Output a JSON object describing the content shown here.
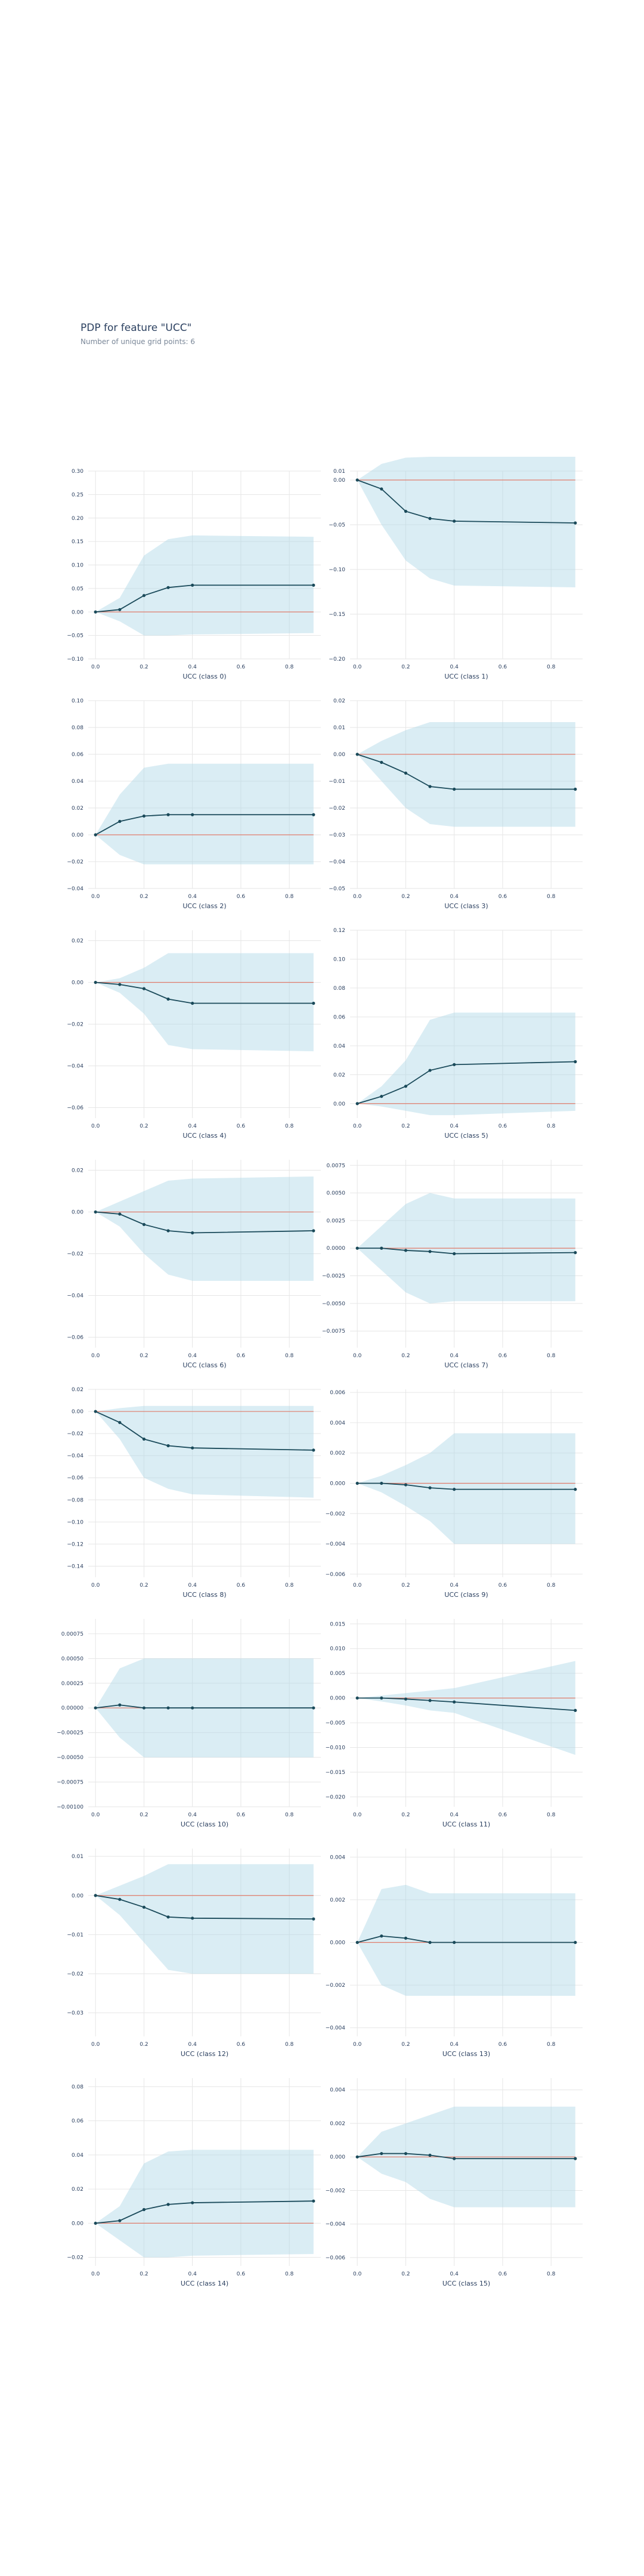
{
  "title": "PDP for feature \"UCC\"",
  "subtitle": "Number of unique grid points: 6",
  "colors": {
    "band": "#add8e6",
    "line": "#1a4a5a",
    "zero": "#e07b6a",
    "grid": "#e6e6e6"
  },
  "chart_data": [
    {
      "type": "line",
      "xlabel": "UCC (class 0)",
      "x": [
        0,
        0.1,
        0.2,
        0.3,
        0.4,
        0.9
      ],
      "y": [
        0,
        0.005,
        0.035,
        0.052,
        0.057,
        0.057
      ],
      "upper": [
        0,
        0.03,
        0.12,
        0.155,
        0.163,
        0.16
      ],
      "lower": [
        0,
        -0.02,
        -0.05,
        -0.05,
        -0.048,
        -0.045
      ],
      "xlim": [
        -0.03,
        0.93
      ],
      "xticks": [
        "0.0",
        "0.2",
        "0.4",
        "0.6",
        "0.8"
      ],
      "ylim": [
        -0.1,
        0.3
      ],
      "yticks": [
        "0.30",
        "0.25",
        "0.20",
        "0.15",
        "0.10",
        "0.05",
        "0.00",
        "−0.05",
        "−0.10"
      ]
    },
    {
      "type": "line",
      "xlabel": "UCC (class 1)",
      "x": [
        0,
        0.1,
        0.2,
        0.3,
        0.4,
        0.9
      ],
      "y": [
        0,
        -0.01,
        -0.035,
        -0.043,
        -0.046,
        -0.048
      ],
      "upper": [
        0,
        0.018,
        0.025,
        0.026,
        0.026,
        0.026
      ],
      "lower": [
        0,
        -0.05,
        -0.09,
        -0.11,
        -0.118,
        -0.12
      ],
      "xlim": [
        -0.03,
        0.93
      ],
      "xticks": [
        "0.0",
        "0.2",
        "0.4",
        "0.6",
        "0.8"
      ],
      "ylim": [
        -0.2,
        0.01
      ],
      "yticks": [
        "0.01",
        "0.00",
        "−0.05",
        "−0.10",
        "−0.15",
        "−0.20"
      ]
    },
    {
      "type": "line",
      "xlabel": "UCC (class 2)",
      "x": [
        0,
        0.1,
        0.2,
        0.3,
        0.4,
        0.9
      ],
      "y": [
        0,
        0.01,
        0.014,
        0.015,
        0.015,
        0.015
      ],
      "upper": [
        0,
        0.03,
        0.05,
        0.053,
        0.053,
        0.053
      ],
      "lower": [
        0,
        -0.015,
        -0.022,
        -0.022,
        -0.022,
        -0.022
      ],
      "xlim": [
        -0.03,
        0.93
      ],
      "xticks": [
        "0.0",
        "0.2",
        "0.4",
        "0.6",
        "0.8"
      ],
      "ylim": [
        -0.04,
        0.1
      ],
      "yticks": [
        "0.10",
        "0.08",
        "0.06",
        "0.04",
        "0.02",
        "0.00",
        "−0.02",
        "−0.04"
      ]
    },
    {
      "type": "line",
      "xlabel": "UCC (class 3)",
      "x": [
        0,
        0.1,
        0.2,
        0.3,
        0.4,
        0.9
      ],
      "y": [
        0,
        -0.003,
        -0.007,
        -0.012,
        -0.013,
        -0.013
      ],
      "upper": [
        0,
        0.005,
        0.009,
        0.012,
        0.012,
        0.012
      ],
      "lower": [
        0,
        -0.01,
        -0.02,
        -0.026,
        -0.027,
        -0.027
      ],
      "xlim": [
        -0.03,
        0.93
      ],
      "xticks": [
        "0.0",
        "0.2",
        "0.4",
        "0.6",
        "0.8"
      ],
      "ylim": [
        -0.05,
        0.02
      ],
      "yticks": [
        "0.02",
        "0.01",
        "0.00",
        "−0.01",
        "−0.02",
        "−0.03",
        "−0.04",
        "−0.05"
      ]
    },
    {
      "type": "line",
      "xlabel": "UCC (class 4)",
      "x": [
        0,
        0.1,
        0.2,
        0.3,
        0.4,
        0.9
      ],
      "y": [
        0,
        -0.001,
        -0.003,
        -0.008,
        -0.01,
        -0.01
      ],
      "upper": [
        0,
        0.002,
        0.007,
        0.014,
        0.014,
        0.014
      ],
      "lower": [
        0,
        -0.005,
        -0.015,
        -0.03,
        -0.032,
        -0.033
      ],
      "xlim": [
        -0.03,
        0.93
      ],
      "xticks": [
        "0.0",
        "0.2",
        "0.4",
        "0.6",
        "0.8"
      ],
      "ylim": [
        -0.065,
        0.025
      ],
      "yticks": [
        "0.02",
        "0.00",
        "−0.02",
        "−0.04",
        "−0.06"
      ]
    },
    {
      "type": "line",
      "xlabel": "UCC (class 5)",
      "x": [
        0,
        0.1,
        0.2,
        0.3,
        0.4,
        0.9
      ],
      "y": [
        0,
        0.005,
        0.012,
        0.023,
        0.027,
        0.029
      ],
      "upper": [
        0,
        0.012,
        0.03,
        0.058,
        0.063,
        0.063
      ],
      "lower": [
        0,
        -0.002,
        -0.005,
        -0.008,
        -0.008,
        -0.005
      ],
      "xlim": [
        -0.03,
        0.93
      ],
      "xticks": [
        "0.0",
        "0.2",
        "0.4",
        "0.6",
        "0.8"
      ],
      "ylim": [
        -0.01,
        0.12
      ],
      "yticks": [
        "0.12",
        "0.10",
        "0.08",
        "0.06",
        "0.04",
        "0.02",
        "0.00"
      ]
    },
    {
      "type": "line",
      "xlabel": "UCC (class 6)",
      "x": [
        0,
        0.1,
        0.2,
        0.3,
        0.4,
        0.9
      ],
      "y": [
        0,
        -0.001,
        -0.006,
        -0.009,
        -0.01,
        -0.009
      ],
      "upper": [
        0,
        0.005,
        0.01,
        0.015,
        0.016,
        0.017
      ],
      "lower": [
        0,
        -0.007,
        -0.02,
        -0.03,
        -0.033,
        -0.033
      ],
      "xlim": [
        -0.03,
        0.93
      ],
      "xticks": [
        "0.0",
        "0.2",
        "0.4",
        "0.6",
        "0.8"
      ],
      "ylim": [
        -0.065,
        0.025
      ],
      "yticks": [
        "0.02",
        "0.00",
        "−0.02",
        "−0.04",
        "−0.06"
      ]
    },
    {
      "type": "line",
      "xlabel": "UCC (class 7)",
      "x": [
        0,
        0.1,
        0.2,
        0.3,
        0.4,
        0.9
      ],
      "y": [
        0,
        0,
        -0.0002,
        -0.0003,
        -0.0005,
        -0.0004
      ],
      "upper": [
        0,
        0.002,
        0.004,
        0.005,
        0.0045,
        0.0045
      ],
      "lower": [
        0,
        -0.002,
        -0.004,
        -0.005,
        -0.0048,
        -0.0048
      ],
      "xlim": [
        -0.03,
        0.93
      ],
      "xticks": [
        "0.0",
        "0.2",
        "0.4",
        "0.6",
        "0.8"
      ],
      "ylim": [
        -0.009,
        0.008
      ],
      "yticks": [
        "0.0075",
        "0.0050",
        "0.0025",
        "0.0000",
        "−0.0025",
        "−0.0050",
        "−0.0075"
      ]
    },
    {
      "type": "line",
      "xlabel": "UCC (class 8)",
      "x": [
        0,
        0.1,
        0.2,
        0.3,
        0.4,
        0.9
      ],
      "y": [
        0,
        -0.01,
        -0.025,
        -0.031,
        -0.033,
        -0.035
      ],
      "upper": [
        0,
        0.003,
        0.005,
        0.005,
        0.005,
        0.005
      ],
      "lower": [
        0,
        -0.025,
        -0.06,
        -0.07,
        -0.075,
        -0.078
      ],
      "xlim": [
        -0.03,
        0.93
      ],
      "xticks": [
        "0.0",
        "0.2",
        "0.4",
        "0.6",
        "0.8"
      ],
      "ylim": [
        -0.15,
        0.02
      ],
      "yticks": [
        "0.02",
        "0.00",
        "−0.02",
        "−0.04",
        "−0.06",
        "−0.08",
        "−0.10",
        "−0.12",
        "−0.14"
      ]
    },
    {
      "type": "line",
      "xlabel": "UCC (class 9)",
      "x": [
        0,
        0.1,
        0.2,
        0.3,
        0.4,
        0.9
      ],
      "y": [
        0,
        0,
        -0.0001,
        -0.0003,
        -0.0004,
        -0.0004
      ],
      "upper": [
        0,
        0.0005,
        0.0012,
        0.002,
        0.0033,
        0.0033
      ],
      "lower": [
        0,
        -0.0006,
        -0.0015,
        -0.0025,
        -0.004,
        -0.004
      ],
      "xlim": [
        -0.03,
        0.93
      ],
      "xticks": [
        "0.0",
        "0.2",
        "0.4",
        "0.6",
        "0.8"
      ],
      "ylim": [
        -0.0062,
        0.0062
      ],
      "yticks": [
        "0.006",
        "0.004",
        "0.002",
        "0.000",
        "−0.002",
        "−0.004",
        "−0.006"
      ]
    },
    {
      "type": "line",
      "xlabel": "UCC (class 10)",
      "x": [
        0,
        0.1,
        0.2,
        0.3,
        0.4,
        0.9
      ],
      "y": [
        0,
        3e-05,
        0,
        0,
        0,
        0
      ],
      "upper": [
        0,
        0.0004,
        0.0005,
        0.0005,
        0.0005,
        0.0005
      ],
      "lower": [
        0,
        -0.0003,
        -0.0005,
        -0.0005,
        -0.0005,
        -0.0005
      ],
      "xlim": [
        -0.03,
        0.93
      ],
      "xticks": [
        "0.0",
        "0.2",
        "0.4",
        "0.6",
        "0.8"
      ],
      "ylim": [
        -0.001,
        0.0009
      ],
      "yticks": [
        "0.00075",
        "0.00050",
        "0.00025",
        "0.00000",
        "−0.00025",
        "−0.00050",
        "−0.00075",
        "−0.00100"
      ]
    },
    {
      "type": "line",
      "xlabel": "UCC (class 11)",
      "x": [
        0,
        0.1,
        0.2,
        0.3,
        0.4,
        0.9
      ],
      "y": [
        0,
        0,
        -0.0002,
        -0.0005,
        -0.0008,
        -0.0025
      ],
      "upper": [
        0,
        0.0005,
        0.001,
        0.0015,
        0.002,
        0.0075
      ],
      "lower": [
        0,
        -0.0007,
        -0.0015,
        -0.0025,
        -0.003,
        -0.0115
      ],
      "xlim": [
        -0.03,
        0.93
      ],
      "xticks": [
        "0.0",
        "0.2",
        "0.4",
        "0.6",
        "0.8"
      ],
      "ylim": [
        -0.022,
        0.016
      ],
      "yticks": [
        "0.015",
        "0.010",
        "0.005",
        "0.000",
        "−0.005",
        "−0.010",
        "−0.015",
        "−0.020"
      ]
    },
    {
      "type": "line",
      "xlabel": "UCC (class 12)",
      "x": [
        0,
        0.1,
        0.2,
        0.3,
        0.4,
        0.9
      ],
      "y": [
        0,
        -0.001,
        -0.003,
        -0.0055,
        -0.0058,
        -0.006
      ],
      "upper": [
        0,
        0.0025,
        0.005,
        0.008,
        0.008,
        0.008
      ],
      "lower": [
        0,
        -0.005,
        -0.012,
        -0.019,
        -0.02,
        -0.02
      ],
      "xlim": [
        -0.03,
        0.93
      ],
      "xticks": [
        "0.0",
        "0.2",
        "0.4",
        "0.6",
        "0.8"
      ],
      "ylim": [
        -0.036,
        0.012
      ],
      "yticks": [
        "0.01",
        "0.00",
        "−0.01",
        "−0.02",
        "−0.03"
      ]
    },
    {
      "type": "line",
      "xlabel": "UCC (class 13)",
      "x": [
        0,
        0.1,
        0.2,
        0.3,
        0.4,
        0.9
      ],
      "y": [
        0,
        0.0003,
        0.0002,
        0,
        0,
        0
      ],
      "upper": [
        0,
        0.0025,
        0.0027,
        0.0023,
        0.0023,
        0.0023
      ],
      "lower": [
        0,
        -0.002,
        -0.0025,
        -0.0025,
        -0.0025,
        -0.0025
      ],
      "xlim": [
        -0.03,
        0.93
      ],
      "xticks": [
        "0.0",
        "0.2",
        "0.4",
        "0.6",
        "0.8"
      ],
      "ylim": [
        -0.0044,
        0.0044
      ],
      "yticks": [
        "0.004",
        "0.002",
        "0.000",
        "−0.002",
        "−0.004"
      ]
    },
    {
      "type": "line",
      "xlabel": "UCC (class 14)",
      "x": [
        0,
        0.1,
        0.2,
        0.3,
        0.4,
        0.9
      ],
      "y": [
        0,
        0.0015,
        0.008,
        0.011,
        0.012,
        0.013
      ],
      "upper": [
        0,
        0.01,
        0.035,
        0.042,
        0.043,
        0.043
      ],
      "lower": [
        0,
        -0.01,
        -0.02,
        -0.02,
        -0.019,
        -0.018
      ],
      "xlim": [
        -0.03,
        0.93
      ],
      "xticks": [
        "0.0",
        "0.2",
        "0.4",
        "0.6",
        "0.8"
      ],
      "ylim": [
        -0.025,
        0.085
      ],
      "yticks": [
        "0.08",
        "0.06",
        "0.04",
        "0.02",
        "0.00",
        "−0.02"
      ]
    },
    {
      "type": "line",
      "xlabel": "UCC (class 15)",
      "x": [
        0,
        0.1,
        0.2,
        0.3,
        0.4,
        0.9
      ],
      "y": [
        0,
        0.0002,
        0.0002,
        0.0001,
        -0.0001,
        -0.0001
      ],
      "upper": [
        0,
        0.0015,
        0.002,
        0.0025,
        0.003,
        0.003
      ],
      "lower": [
        0,
        -0.001,
        -0.0015,
        -0.0025,
        -0.003,
        -0.003
      ],
      "xlim": [
        -0.03,
        0.93
      ],
      "xticks": [
        "0.0",
        "0.2",
        "0.4",
        "0.6",
        "0.8"
      ],
      "ylim": [
        -0.0065,
        0.0047
      ],
      "yticks": [
        "0.004",
        "0.002",
        "0.000",
        "−0.002",
        "−0.004",
        "−0.006"
      ]
    }
  ]
}
